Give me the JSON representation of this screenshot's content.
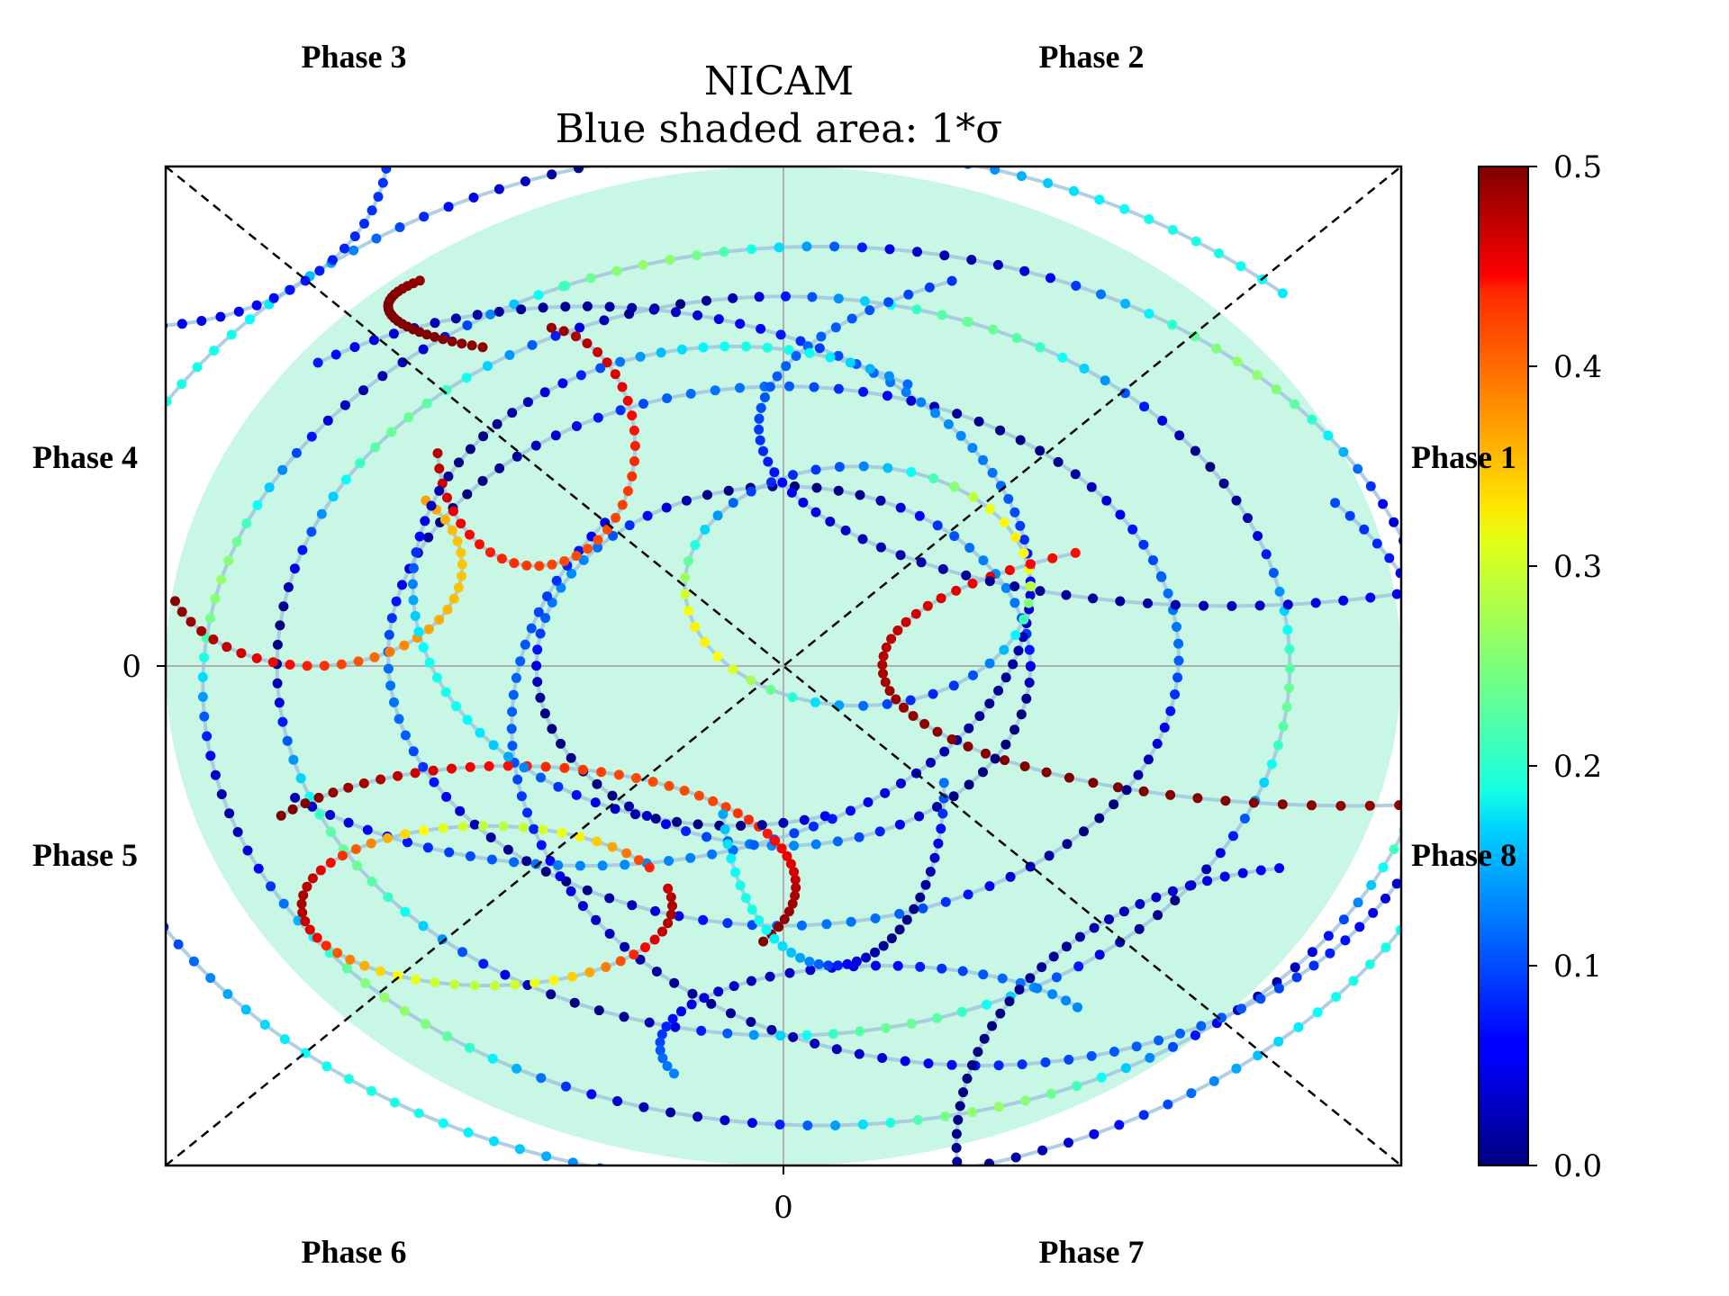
{
  "chart_data": {
    "type": "scatter",
    "title": "NICAM",
    "subtitle": "Blue shaded area: 1*σ",
    "xlabel": "",
    "ylabel": "",
    "x_tick_labels": [
      "0"
    ],
    "y_tick_labels": [
      "0"
    ],
    "xlim": [
      -2.5,
      2.5
    ],
    "ylim": [
      -2.5,
      2.5
    ],
    "shaded_ellipse": {
      "center": [
        0,
        0
      ],
      "rx": 2.5,
      "ry": 2.5,
      "color": "#c8f7e6"
    },
    "trajectory_color": "#9dc3dc",
    "phase_labels": [
      "Phase 2",
      "Phase 3",
      "Phase 4",
      "Phase 5",
      "Phase 6",
      "Phase 7",
      "Phase 8",
      "Phase 1"
    ],
    "phase_label_positions": [
      "top-right",
      "top-left",
      "left-upper",
      "left-lower",
      "bottom-left",
      "bottom-right",
      "right-lower",
      "right-upper"
    ],
    "colorbar": {
      "colormap": "jet",
      "range": [
        0.0,
        0.5
      ],
      "tick_labels": [
        "0.0",
        "0.1",
        "0.2",
        "0.3",
        "0.4",
        "0.5"
      ]
    },
    "grid": false,
    "tracks": [
      {
        "cx": 0.0,
        "cy": 0.0,
        "rx": 1.0,
        "ry": 0.9,
        "start": 0,
        "sweep": 6.28,
        "n": 70,
        "c0": 0.05,
        "amp": 0.08,
        "freq": 3
      },
      {
        "cx": 0.0,
        "cy": 0.05,
        "rx": 1.6,
        "ry": 1.35,
        "start": 0.3,
        "sweep": 6.28,
        "n": 100,
        "c0": 0.06,
        "amp": 0.06,
        "freq": 4
      },
      {
        "cx": 0.0,
        "cy": 0.0,
        "rx": 2.05,
        "ry": 1.85,
        "start": 1.2,
        "sweep": 6.28,
        "n": 120,
        "c0": 0.12,
        "amp": 0.12,
        "freq": 5
      },
      {
        "cx": 0.15,
        "cy": -0.1,
        "rx": 2.5,
        "ry": 2.2,
        "start": 2.0,
        "sweep": 6.28,
        "n": 140,
        "c0": 0.14,
        "amp": 0.12,
        "freq": 6
      },
      {
        "cx": 0.0,
        "cy": 0.0,
        "rx": 2.9,
        "ry": 2.6,
        "start": 0.8,
        "sweep": 5.5,
        "n": 140,
        "c0": 0.1,
        "amp": 0.1,
        "freq": 4
      },
      {
        "cx": 0.8,
        "cy": -0.3,
        "rx": 1.9,
        "ry": 1.7,
        "start": 2.5,
        "sweep": 4.5,
        "n": 90,
        "c0": 0.06,
        "amp": 0.05,
        "freq": 3
      },
      {
        "cx": -0.8,
        "cy": 0.4,
        "rx": 1.8,
        "ry": 1.4,
        "start": 4.0,
        "sweep": 4.5,
        "n": 90,
        "c0": 0.07,
        "amp": 0.06,
        "freq": 3
      },
      {
        "cx": 0.3,
        "cy": 0.4,
        "rx": 0.7,
        "ry": 0.6,
        "start": 0.0,
        "sweep": 6.28,
        "n": 45,
        "c0": 0.2,
        "amp": 0.12,
        "freq": 2
      },
      {
        "cx": -1.2,
        "cy": -1.2,
        "rx": 0.75,
        "ry": 0.4,
        "start": 0.5,
        "sweep": 6.0,
        "n": 55,
        "c0": 0.38,
        "amp": 0.1,
        "freq": 2
      },
      {
        "cx": -1.1,
        "cy": -1.1,
        "rx": 1.15,
        "ry": 0.6,
        "start": 5.8,
        "sweep": 3.0,
        "n": 45,
        "c0": 0.45,
        "amp": 0.05,
        "freq": 2
      },
      {
        "cx": 2.3,
        "cy": 0.0,
        "rx": 1.9,
        "ry": 0.7,
        "start": 2.2,
        "sweep": 2.8,
        "n": 45,
        "c0": 0.45,
        "amp": 0.05,
        "freq": 1
      },
      {
        "cx": -1.9,
        "cy": 0.5,
        "rx": 0.6,
        "ry": 0.5,
        "start": 3.5,
        "sweep": 3.5,
        "n": 30,
        "c0": 0.42,
        "amp": 0.08,
        "freq": 1
      },
      {
        "cx": -1.0,
        "cy": 1.1,
        "rx": 0.4,
        "ry": 0.6,
        "start": 3.2,
        "sweep": 4.5,
        "n": 35,
        "c0": 0.45,
        "amp": 0.05,
        "freq": 1
      },
      {
        "cx": 0.4,
        "cy": -1.9,
        "rx": 0.9,
        "ry": 0.4,
        "start": 0.5,
        "sweep": 3.0,
        "n": 30,
        "c0": 0.08,
        "amp": 0.05,
        "freq": 2
      },
      {
        "cx": -2.6,
        "cy": 2.6,
        "rx": 1.0,
        "ry": 0.9,
        "start": 4.8,
        "sweep": 1.6,
        "n": 20,
        "c0": 0.05,
        "amp": 0.04,
        "freq": 1
      },
      {
        "cx": 1.8,
        "cy": 1.2,
        "rx": 1.9,
        "ry": 0.9,
        "start": 2.2,
        "sweep": 3.6,
        "n": 60,
        "c0": 0.06,
        "amp": 0.05,
        "freq": 2
      },
      {
        "cx": -0.2,
        "cy": 0.4,
        "rx": 1.3,
        "ry": 1.2,
        "start": 1.0,
        "sweep": 4.0,
        "n": 60,
        "c0": 0.1,
        "amp": 0.1,
        "freq": 3
      },
      {
        "cx": -0.7,
        "cy": 1.8,
        "rx": 0.9,
        "ry": 0.25,
        "start": 2.6,
        "sweep": 1.5,
        "n": 25,
        "c0": 0.47,
        "amp": 0.03,
        "freq": 1
      },
      {
        "cx": 2.2,
        "cy": -2.4,
        "rx": 1.5,
        "ry": 1.4,
        "start": 1.7,
        "sweep": 2.0,
        "n": 40,
        "c0": 0.04,
        "amp": 0.04,
        "freq": 2
      },
      {
        "cx": 0.2,
        "cy": -0.6,
        "rx": 0.45,
        "ry": 0.9,
        "start": 3.3,
        "sweep": 3.0,
        "n": 35,
        "c0": 0.1,
        "amp": 0.1,
        "freq": 2
      }
    ]
  }
}
